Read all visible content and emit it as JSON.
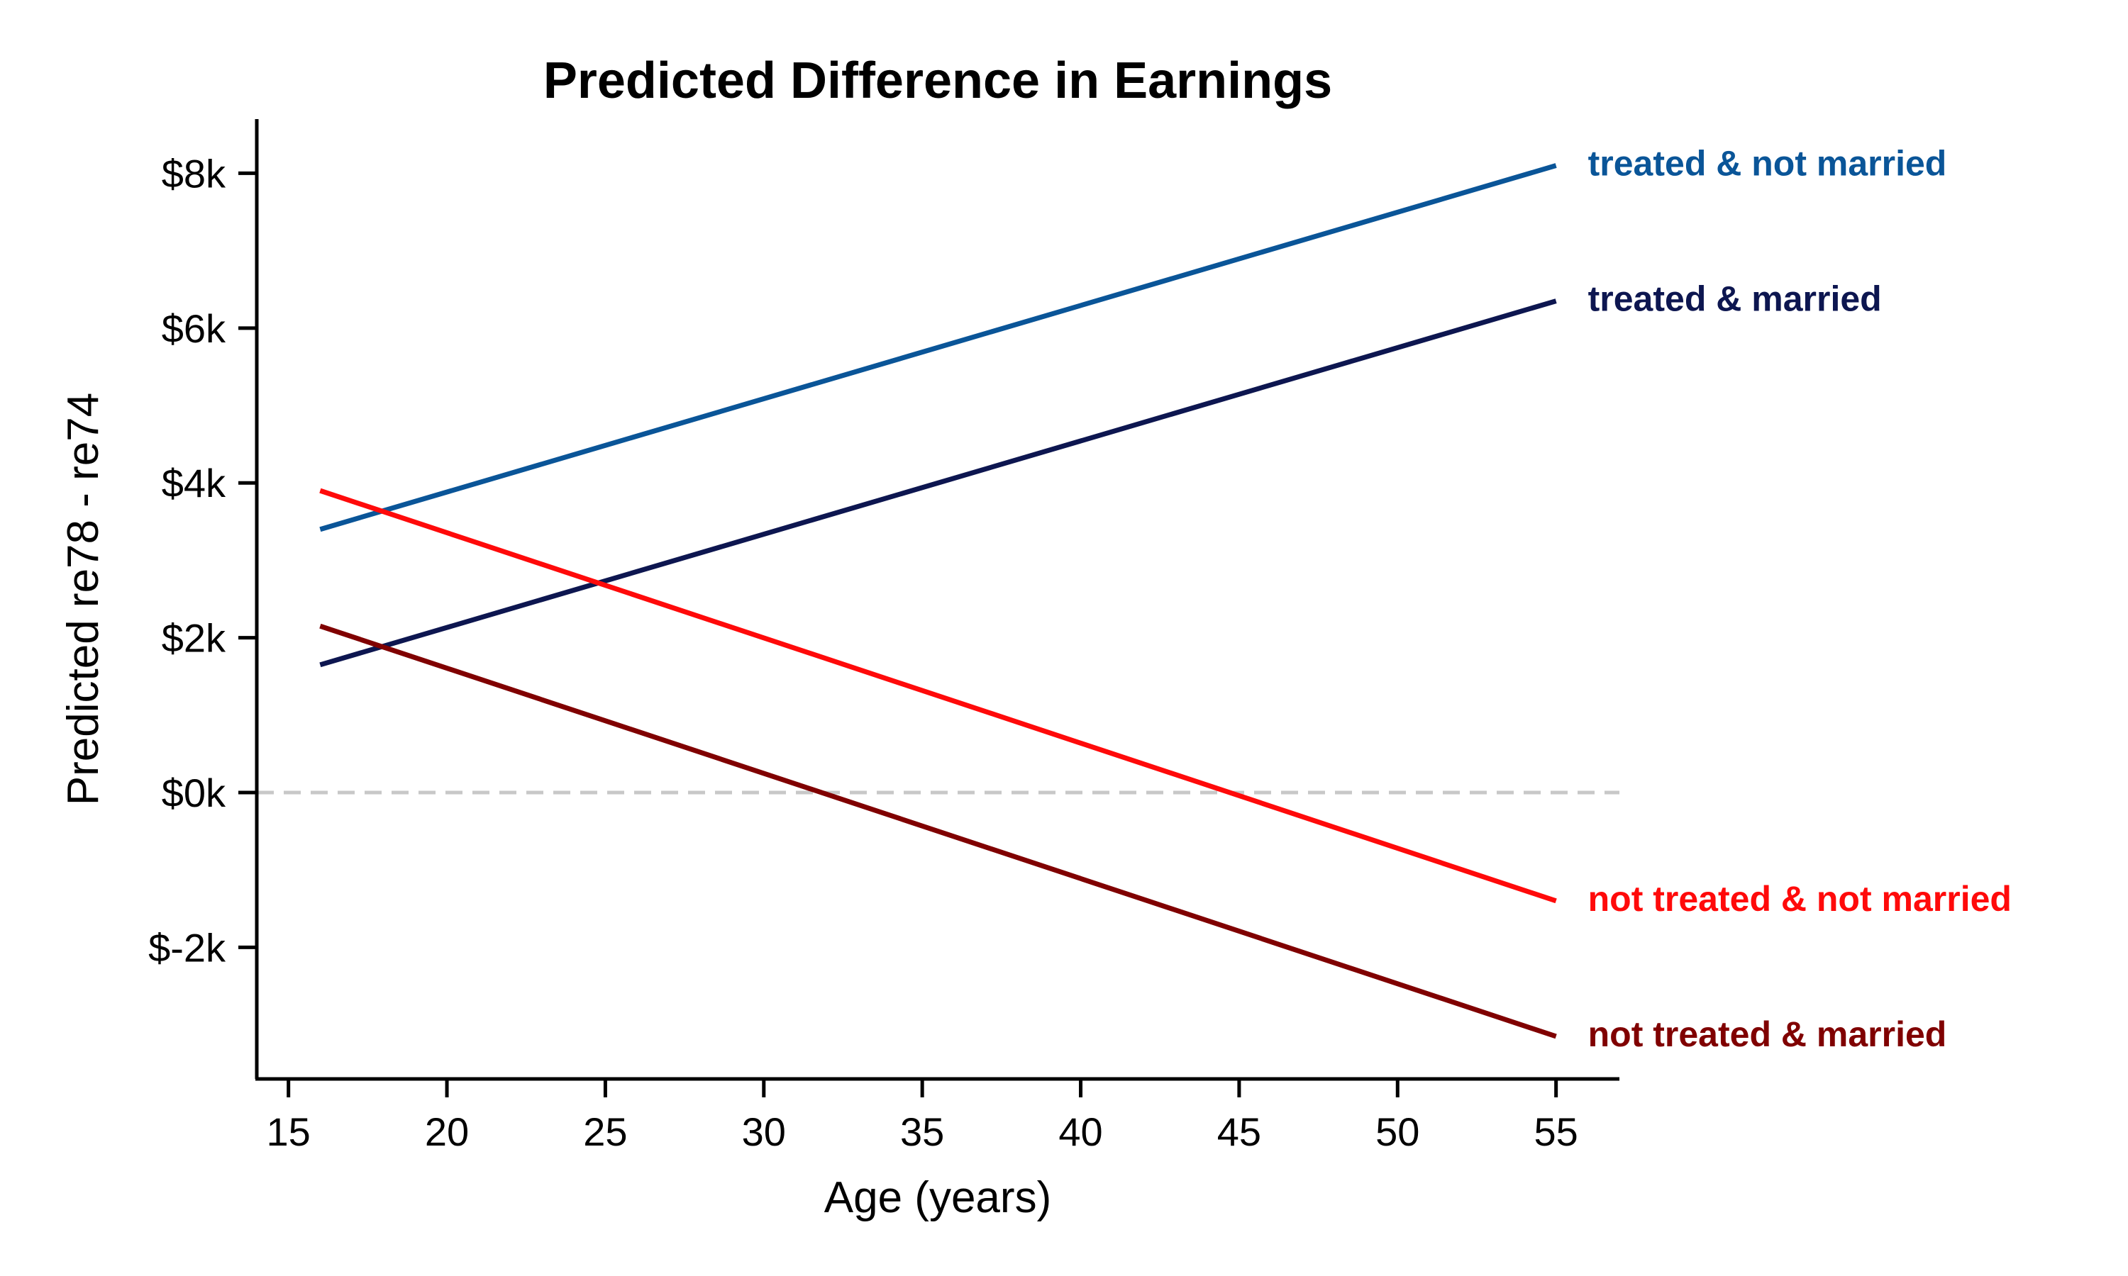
{
  "chart_data": {
    "type": "line",
    "title": "Predicted Difference in Earnings",
    "xlabel": "Age (years)",
    "ylabel": "Predicted re78 - re74",
    "xlim": [
      14,
      57
    ],
    "ylim": [
      -3.7,
      8.7
    ],
    "x_ticks": [
      15,
      20,
      25,
      30,
      35,
      40,
      45,
      50,
      55
    ],
    "x_tick_labels": [
      "15",
      "20",
      "25",
      "30",
      "35",
      "40",
      "45",
      "50",
      "55"
    ],
    "y_ticks": [
      -2,
      0,
      2,
      4,
      6,
      8
    ],
    "y_tick_labels": [
      "$-2k",
      "$0k",
      "$2k",
      "$4k",
      "$6k",
      "$8k"
    ],
    "reference_line": {
      "y": 0,
      "style": "dashed",
      "color": "#c8c8c8"
    },
    "grid": false,
    "legend": "direct labels at line ends",
    "series": [
      {
        "name": "treated & not married",
        "color": "#0a5598",
        "x": [
          16,
          55
        ],
        "y": [
          3.4,
          8.1
        ]
      },
      {
        "name": "treated & married",
        "color": "#0d1650",
        "x": [
          16,
          55
        ],
        "y": [
          1.65,
          6.35
        ]
      },
      {
        "name": "not treated & not married",
        "color": "#ff0a0a",
        "x": [
          16,
          55
        ],
        "y": [
          3.9,
          -1.4
        ]
      },
      {
        "name": "not treated & married",
        "color": "#800000",
        "x": [
          16,
          55
        ],
        "y": [
          2.15,
          -3.15
        ]
      }
    ]
  }
}
